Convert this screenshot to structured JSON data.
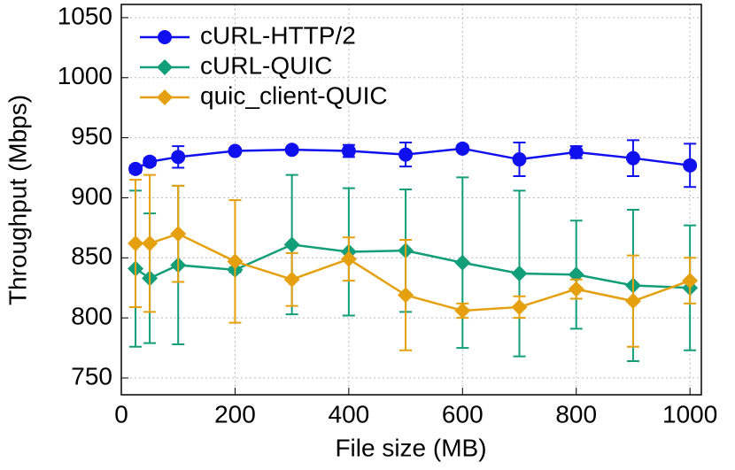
{
  "chart_data": {
    "type": "line",
    "x_label": "File size (MB)",
    "y_label": "Throughput (Mbps)",
    "x": [
      25,
      50,
      100,
      200,
      300,
      400,
      500,
      600,
      700,
      800,
      900,
      1000
    ],
    "series": [
      {
        "name": "cURL-HTTP/2",
        "color": "#1010ee",
        "marker": "circle",
        "values": [
          924,
          930,
          934,
          939,
          940,
          939,
          936,
          941,
          932,
          938,
          933,
          927
        ],
        "errors": [
          3,
          3,
          9,
          2,
          2,
          5,
          10,
          2,
          14,
          5,
          15,
          18
        ]
      },
      {
        "name": "cURL-QUIC",
        "color": "#129e78",
        "marker": "diamond",
        "values": [
          841,
          833,
          844,
          840,
          861,
          855,
          856,
          846,
          837,
          836,
          827,
          825
        ],
        "errors": [
          65,
          54,
          66,
          2,
          58,
          53,
          51,
          71,
          69,
          45,
          63,
          52
        ]
      },
      {
        "name": "quic_client-QUIC",
        "color": "#e5a00f",
        "marker": "diamond",
        "values": [
          862,
          862,
          870,
          847,
          832,
          849,
          819,
          806,
          809,
          824,
          814,
          831
        ],
        "errors": [
          53,
          57,
          40,
          51,
          22,
          18,
          46,
          6,
          9,
          8,
          38,
          19
        ]
      }
    ],
    "xlim": [
      0,
      1020
    ],
    "ylim": [
      736,
      1061
    ],
    "xticks": [
      0,
      200,
      400,
      600,
      800,
      1000
    ],
    "yticks": [
      750,
      800,
      850,
      900,
      950,
      1000,
      1050
    ],
    "grid": true,
    "legend": "upper-left"
  }
}
